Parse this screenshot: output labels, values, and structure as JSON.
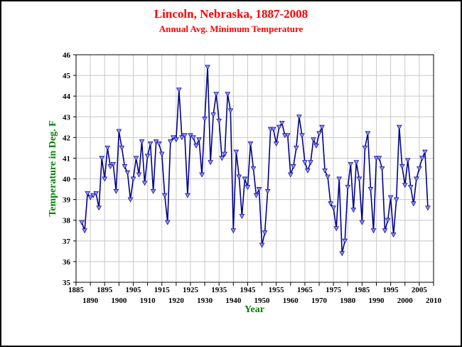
{
  "chart_data": {
    "type": "line",
    "title": "Lincoln, Nebraska, 1887-2008",
    "subtitle": "Annual Avg. Minimum Temperature",
    "xlabel": "Year",
    "ylabel": "Temperature in Deg. F",
    "xlim": [
      1885,
      2010
    ],
    "ylim": [
      35,
      46
    ],
    "x_ticks_top": [
      "1885",
      "1895",
      "1905",
      "1915",
      "1925",
      "1935",
      "1945",
      "1955",
      "1965",
      "1975",
      "1985",
      "1995",
      "2005"
    ],
    "x_ticks_bottom": [
      "1890",
      "1900",
      "1910",
      "1920",
      "1930",
      "1940",
      "1950",
      "1960",
      "1970",
      "1980",
      "1990",
      "2000",
      "2010"
    ],
    "y_ticks": [
      "35",
      "36",
      "37",
      "38",
      "39",
      "40",
      "41",
      "42",
      "43",
      "44",
      "45",
      "46"
    ],
    "grid": true,
    "marker": "inverted-triangle",
    "series": [
      {
        "start_year": 1887,
        "values": [
          37.9,
          37.5,
          39.3,
          39.1,
          39.2,
          39.3,
          38.6,
          41.0,
          40.0,
          41.5,
          40.6,
          40.7,
          39.4,
          42.3,
          41.5,
          40.6,
          40.3,
          39.0,
          40.0,
          41.0,
          40.2,
          41.8,
          39.8,
          41.1,
          41.7,
          39.4,
          41.8,
          41.7,
          41.2,
          39.2,
          37.9,
          41.8,
          42.0,
          41.9,
          44.3,
          42.0,
          42.1,
          39.2,
          42.1,
          42.0,
          41.6,
          41.9,
          40.2,
          42.9,
          45.4,
          40.8,
          43.1,
          44.1,
          42.8,
          41.0,
          41.2,
          44.1,
          43.3,
          37.5,
          41.3,
          40.1,
          38.2,
          40.0,
          39.6,
          41.7,
          40.5,
          39.2,
          39.5,
          36.8,
          37.4,
          39.4,
          42.4,
          42.4,
          41.7,
          42.5,
          42.7,
          42.1,
          42.1,
          40.2,
          40.6,
          41.5,
          43.0,
          42.1,
          40.8,
          40.4,
          40.8,
          41.9,
          41.6,
          42.2,
          42.5,
          40.4,
          40.1,
          38.8,
          38.6,
          37.6,
          40.0,
          36.4,
          37.0,
          39.6,
          40.7,
          38.5,
          40.8,
          40.0,
          37.9,
          41.5,
          42.2,
          39.5,
          37.5,
          41.0,
          41.0,
          40.5,
          37.5,
          38.0,
          39.1,
          37.3,
          39.0,
          42.5,
          40.6,
          39.7,
          40.9,
          39.6,
          38.8,
          40.0,
          40.5,
          41.0,
          41.3,
          38.6
        ],
        "color": "#00008b",
        "marker_color": "#8c8cff"
      }
    ]
  },
  "colors": {
    "title": "#ff0000",
    "axis_label": "#008000",
    "line": "#00008b",
    "marker": "#8c8cff",
    "grid": "#c8c8c8"
  }
}
